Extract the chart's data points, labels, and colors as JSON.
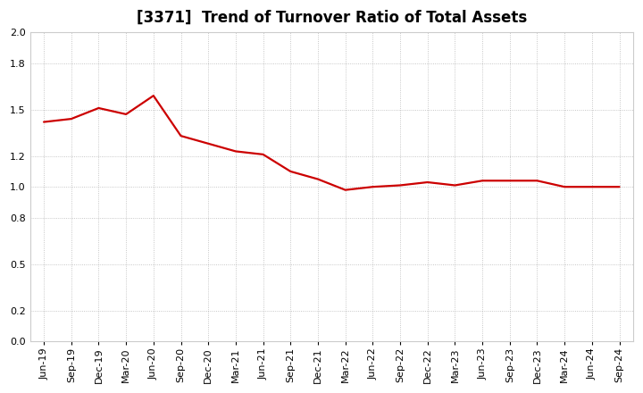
{
  "title": "[3371]  Trend of Turnover Ratio of Total Assets",
  "x_labels": [
    "Jun-19",
    "Sep-19",
    "Dec-19",
    "Mar-20",
    "Jun-20",
    "Sep-20",
    "Dec-20",
    "Mar-21",
    "Jun-21",
    "Sep-21",
    "Dec-21",
    "Mar-22",
    "Jun-22",
    "Sep-22",
    "Dec-22",
    "Mar-23",
    "Jun-23",
    "Sep-23",
    "Dec-23",
    "Mar-24",
    "Jun-24",
    "Sep-24"
  ],
  "y_values": [
    1.42,
    1.44,
    1.51,
    1.47,
    1.59,
    1.33,
    1.28,
    1.23,
    1.21,
    1.1,
    1.05,
    0.98,
    1.0,
    1.01,
    1.03,
    1.01,
    1.04,
    1.04,
    1.04,
    1.0,
    1.0,
    1.0
  ],
  "line_color": "#cc0000",
  "line_width": 1.6,
  "ylim": [
    0.0,
    2.0
  ],
  "yticks": [
    0.0,
    0.2,
    0.5,
    0.8,
    1.0,
    1.2,
    1.5,
    1.8,
    2.0
  ],
  "background_color": "#ffffff",
  "grid_color": "#999999",
  "title_fontsize": 12,
  "tick_fontsize": 8
}
